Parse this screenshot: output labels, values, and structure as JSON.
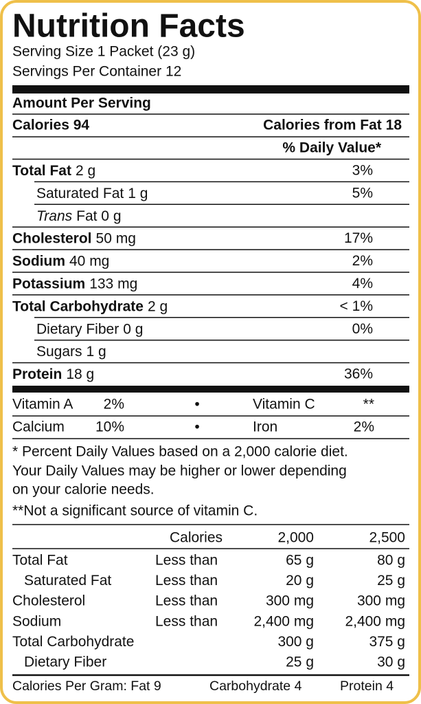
{
  "header": {
    "title": "Nutrition Facts",
    "serving_size": "Serving Size 1 Packet (23 g)",
    "servings_per_container": "Servings Per Container 12"
  },
  "amount_per_serving": "Amount Per Serving",
  "calories": "Calories 94",
  "calories_from_fat": "Calories from Fat 18",
  "daily_value_header": "% Daily Value*",
  "nutrients": [
    {
      "name": "Total Fat",
      "amount": "2 g",
      "daily_value": "3%",
      "level": 0
    },
    {
      "name": "Saturated Fat",
      "amount": "1 g",
      "daily_value": "5%",
      "level": 1
    },
    {
      "name": "Trans",
      "amount": "Fat 0 g",
      "level": 1,
      "italic": true
    },
    {
      "name": "Cholesterol",
      "amount": "50 mg",
      "daily_value": "17%",
      "level": 0
    },
    {
      "name": "Sodium",
      "amount": "40 mg",
      "daily_value": "2%",
      "level": 0
    },
    {
      "name": "Potassium",
      "amount": "133 mg",
      "daily_value": "4%",
      "level": 0
    },
    {
      "name": "Total Carbohydrate",
      "amount": "2 g",
      "daily_value": "< 1%",
      "level": 0
    },
    {
      "name": "Dietary Fiber",
      "amount": "0 g",
      "daily_value": "0%",
      "level": 1
    },
    {
      "name": "Sugars",
      "amount": "1 g",
      "level": 1
    },
    {
      "name": "Protein",
      "amount": "18 g",
      "daily_value": "36%",
      "level": 0
    }
  ],
  "vitamins": {
    "separator": "•",
    "rows": [
      [
        {
          "name": "Vitamin A",
          "daily_value": "2%"
        },
        {
          "name": "Vitamin C",
          "daily_value": "**"
        }
      ],
      [
        {
          "name": "Calcium",
          "daily_value": "10%"
        },
        {
          "name": "Iron",
          "daily_value": "2%"
        }
      ]
    ]
  },
  "footnotes": [
    "* Percent Daily Values based on a 2,000 calorie diet.",
    "Your Daily Values may be higher or lower depending",
    "on your calorie needs.",
    "**Not a significant source of vitamin C."
  ],
  "reference": {
    "header": "Calories",
    "columns": [
      "2,000",
      "2,500"
    ],
    "rows": [
      {
        "name": "Total Fat",
        "qualifier": "Less than",
        "values": [
          "65 g",
          "80 g"
        ],
        "level": 0
      },
      {
        "name": "Saturated Fat",
        "qualifier": "Less than",
        "values": [
          "20 g",
          "25 g"
        ],
        "level": 1
      },
      {
        "name": "Cholesterol",
        "qualifier": "Less than",
        "values": [
          "300 mg",
          "300 mg"
        ],
        "level": 0
      },
      {
        "name": "Sodium",
        "qualifier": "Less than",
        "values": [
          "2,400 mg",
          "2,400 mg"
        ],
        "level": 0
      },
      {
        "name": "Total Carbohydrate",
        "values": [
          "300 g",
          "375 g"
        ],
        "level": 0
      },
      {
        "name": "Dietary Fiber",
        "values": [
          "25 g",
          "30 g"
        ],
        "level": 1
      }
    ]
  },
  "calories_per_gram": [
    "Calories Per Gram: Fat 9",
    "Carbohydrate 4",
    "Protein 4"
  ]
}
